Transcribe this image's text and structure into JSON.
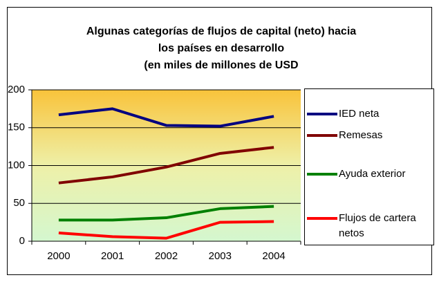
{
  "chart_data": {
    "type": "line",
    "title": [
      "Algunas categorías de flujos de capital (neto) hacia",
      "los países en desarrollo",
      "(en miles de millones de USD"
    ],
    "categories": [
      "2000",
      "2001",
      "2002",
      "2003",
      "2004"
    ],
    "series": [
      {
        "name": "IED neta",
        "color": "#000080",
        "values": [
          167,
          175,
          153,
          152,
          165
        ]
      },
      {
        "name": "Remesas",
        "color": "#800000",
        "values": [
          77,
          85,
          98,
          116,
          124
        ]
      },
      {
        "name": "Ayuda exterior",
        "color": "#008000",
        "values": [
          28,
          28,
          31,
          43,
          46
        ]
      },
      {
        "name": "Flujos de cartera netos",
        "color": "#ff0000",
        "values": [
          11,
          6,
          4,
          25,
          26
        ]
      }
    ],
    "ylim": [
      0,
      200
    ],
    "yticks": [
      0,
      50,
      100,
      150,
      200
    ],
    "grid": true,
    "legend": "right"
  }
}
